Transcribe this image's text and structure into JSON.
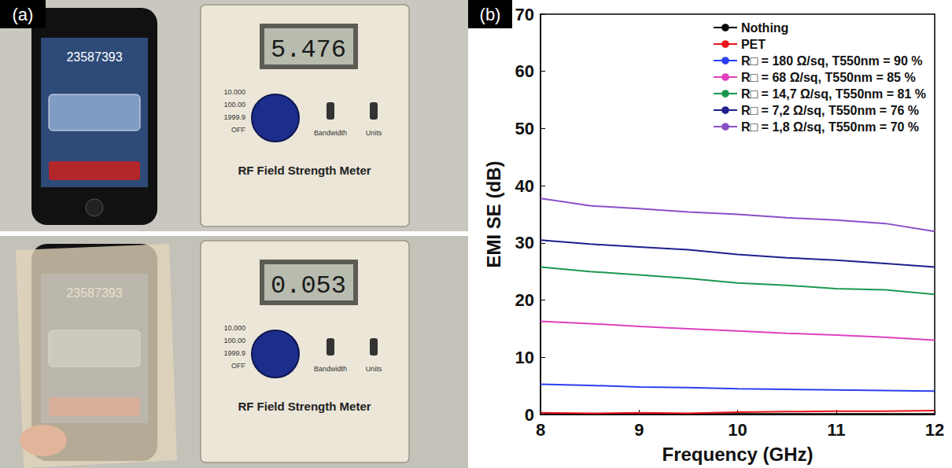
{
  "photo": {
    "label": "(a)",
    "phone_number": "23587393",
    "meter_title": "RF Field Strength Meter",
    "readings": [
      "5.476",
      "0.053"
    ],
    "dial_marks": [
      "10.000",
      "100.00",
      "1999.9",
      "OFF"
    ],
    "switch_labels": [
      "Bandwidth",
      "Units"
    ]
  },
  "chart_data": {
    "type": "line",
    "annotations": [
      "(b)"
    ],
    "x_label": "Frequency (GHz)",
    "y_label": "EMI SE (dB)",
    "x": [
      8,
      8.5,
      9,
      9.5,
      10,
      10.5,
      11,
      11.5,
      12
    ],
    "series": [
      {
        "name": "Nothing",
        "color": "#000000",
        "values": [
          0.1,
          0.1,
          0.1,
          0.1,
          0.1,
          0.1,
          0.1,
          0.1,
          0.1
        ]
      },
      {
        "name": "PET",
        "color": "#e8141a",
        "values": [
          0.3,
          0.2,
          0.3,
          0.2,
          0.4,
          0.5,
          0.6,
          0.6,
          0.7
        ]
      },
      {
        "name": "R□ = 180 Ω/sq, T550nm = 90 %",
        "color": "#2b3ff0",
        "values": [
          5.3,
          5.1,
          4.8,
          4.7,
          4.5,
          4.4,
          4.3,
          4.2,
          4.1
        ]
      },
      {
        "name": "R□ = 68 Ω/sq, T550nm = 85 %",
        "color": "#e040c0",
        "values": [
          16.3,
          15.9,
          15.4,
          15.0,
          14.6,
          14.2,
          13.9,
          13.5,
          13.0
        ]
      },
      {
        "name": "R□ = 14,7 Ω/sq, T550nm = 81 %",
        "color": "#1a9850",
        "values": [
          25.8,
          25.0,
          24.4,
          23.8,
          23.0,
          22.6,
          22.0,
          21.8,
          21.0
        ]
      },
      {
        "name": "R□ = 7,2 Ω/sq, T550nm = 76 %",
        "color": "#1f1f8f",
        "values": [
          30.5,
          29.8,
          29.3,
          28.8,
          28.0,
          27.4,
          27.0,
          26.4,
          25.8
        ]
      },
      {
        "name": "R□ = 1,8 Ω/sq, T550nm = 70 %",
        "color": "#8a4fc8",
        "values": [
          37.8,
          36.5,
          36.0,
          35.4,
          35.0,
          34.4,
          34.0,
          33.4,
          32.0
        ]
      }
    ],
    "xlim": [
      8,
      12
    ],
    "xticks": [
      8,
      9,
      10,
      11,
      12
    ],
    "ylim": [
      0,
      70
    ],
    "yticks": [
      0,
      10,
      20,
      30,
      40,
      50,
      60,
      70
    ],
    "grid": false,
    "legend": "upper right"
  }
}
